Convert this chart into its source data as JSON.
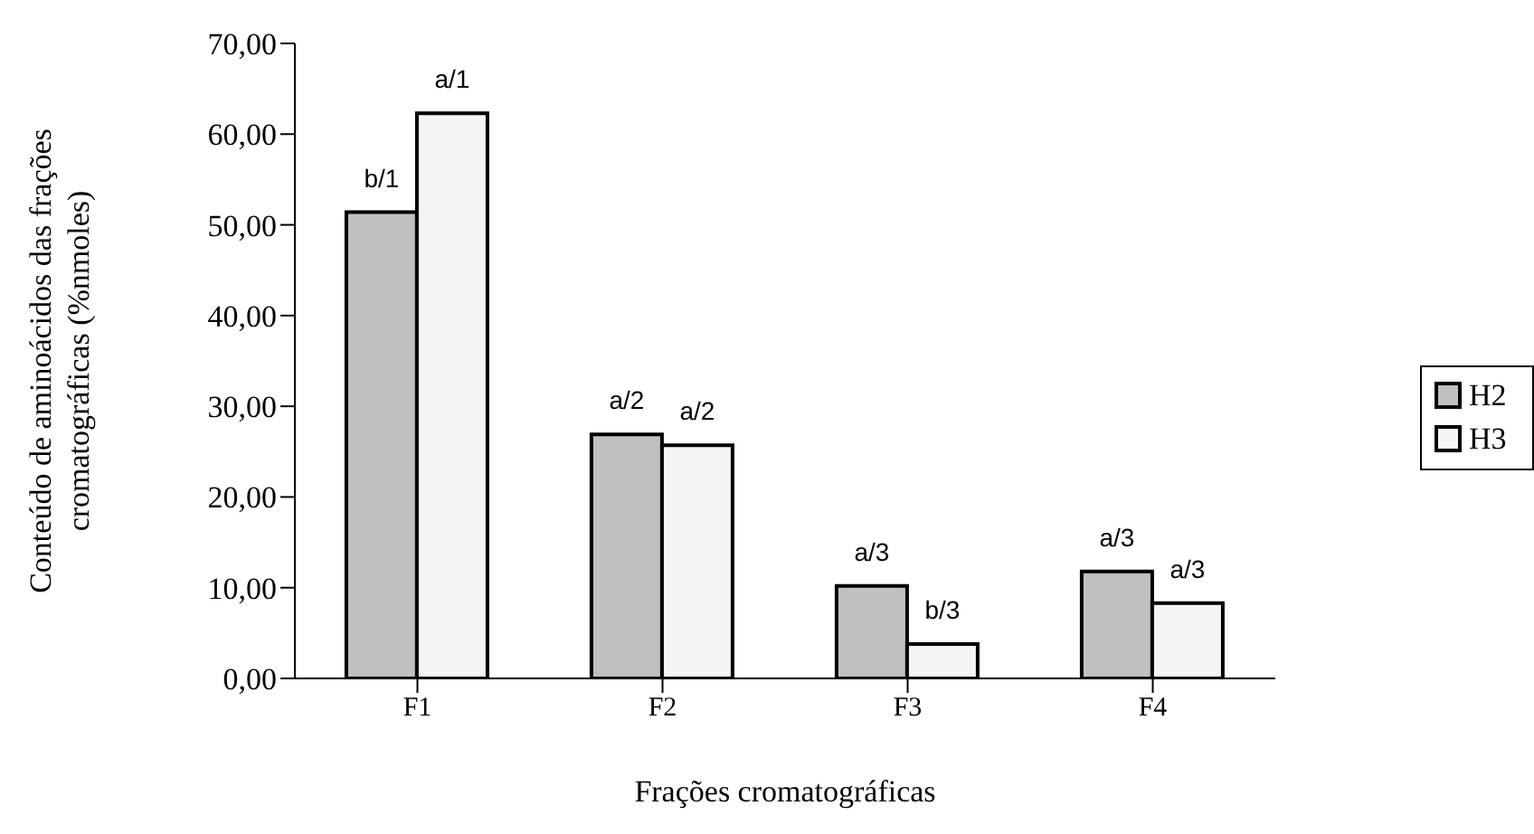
{
  "chart_data": {
    "type": "bar",
    "xlabel": "Frações cromatográficas",
    "ylabel": "Conteúdo de aminoácidos das frações cromatográficas (%nmoles)",
    "categories": [
      "F1",
      "F2",
      "F3",
      "F4"
    ],
    "series": [
      {
        "name": "H2",
        "color": "#c0c0c0",
        "values": [
          51.4,
          26.9,
          10.2,
          11.8
        ]
      },
      {
        "name": "H3",
        "color": "#f5f5f5",
        "values": [
          62.3,
          25.7,
          3.8,
          8.3
        ]
      }
    ],
    "annotations": [
      {
        "text": "b/1",
        "x": "F1",
        "y": 51.4
      },
      {
        "text": "a/2",
        "x": "F2",
        "y": 26.9
      },
      {
        "text": "a/3",
        "x": "F3",
        "y": 10.2
      },
      {
        "text": "a/3",
        "x": "F4",
        "y": 11.8
      },
      {
        "text": "a/1",
        "x": "F1",
        "y": 62.3
      },
      {
        "text": "a/2",
        "x": "F2",
        "y": 25.7
      },
      {
        "text": "b/3",
        "x": "F3",
        "y": 3.8
      },
      {
        "text": "a/3",
        "x": "F4",
        "y": 8.3
      }
    ],
    "ylim": [
      0,
      70
    ],
    "yticks": [
      {
        "value": 0,
        "label": "0,00"
      },
      {
        "value": 10,
        "label": "10,00"
      },
      {
        "value": 20,
        "label": "20,00"
      },
      {
        "value": 30,
        "label": "30,00"
      },
      {
        "value": 40,
        "label": "40,00"
      },
      {
        "value": 50,
        "label": "50,00"
      },
      {
        "value": 60,
        "label": "60,00"
      },
      {
        "value": 70,
        "label": "70,00"
      }
    ],
    "legend": "right"
  }
}
